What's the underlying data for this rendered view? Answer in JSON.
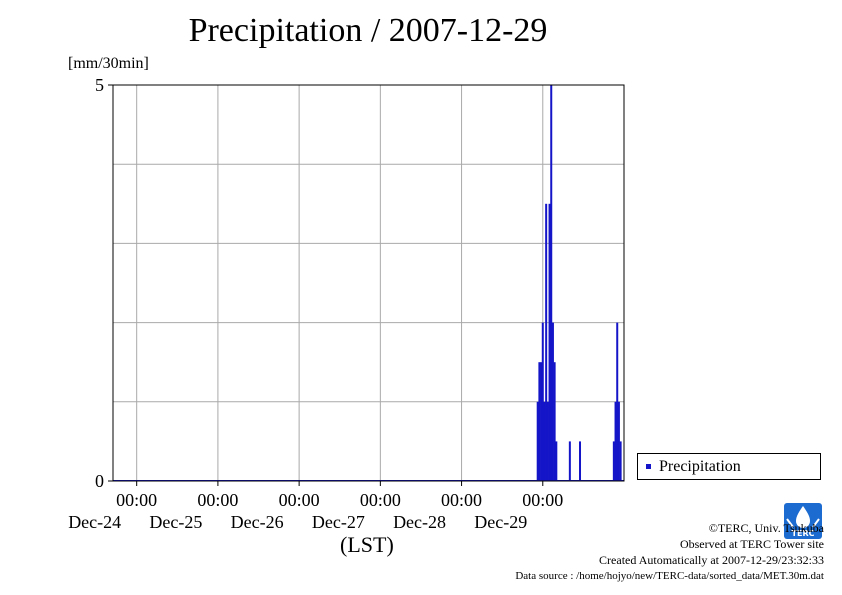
{
  "title": "Precipitation / 2007-12-29",
  "y_unit": "[mm/30min]",
  "x_axis_label": "(LST)",
  "legend": {
    "label": "Precipitation"
  },
  "colors": {
    "series": "#1414c8",
    "grid": "#a9a9a9",
    "logo": "#1c6bd0"
  },
  "credits": {
    "copyright": "©TERC, Univ. Tsukuba",
    "observed": "Observed at TERC Tower site",
    "created": "Created Automatically at 2007-12-29/23:32:33",
    "source": "Data source : /home/hojyo/new/TERC-data/sorted_data/MET.30m.dat"
  },
  "logo_text": "TERC",
  "chart_data": {
    "type": "bar",
    "title": "Precipitation / 2007-12-29",
    "ylabel": "[mm/30min]",
    "xlabel": "(LST)",
    "ylim": [
      0,
      5
    ],
    "y_ticks": [
      0,
      5
    ],
    "y_grid": [
      1,
      2,
      3,
      4
    ],
    "xlim": [
      "2007-12-23 17:00",
      "2007-12-30 00:00"
    ],
    "x_ticks": [
      {
        "time": "2007-12-24 00:00",
        "label": "00:00",
        "day": "Dec-24"
      },
      {
        "time": "2007-12-25 00:00",
        "label": "00:00",
        "day": "Dec-25"
      },
      {
        "time": "2007-12-26 00:00",
        "label": "00:00",
        "day": "Dec-26"
      },
      {
        "time": "2007-12-27 00:00",
        "label": "00:00",
        "day": "Dec-27"
      },
      {
        "time": "2007-12-28 00:00",
        "label": "00:00",
        "day": "Dec-28"
      },
      {
        "time": "2007-12-29 00:00",
        "label": "00:00",
        "day": "Dec-29"
      }
    ],
    "grid": true,
    "legend_position": "right",
    "series": [
      {
        "name": "Precipitation",
        "points": [
          {
            "t": "2007-12-28 22:30",
            "v": 1.0
          },
          {
            "t": "2007-12-28 23:00",
            "v": 1.5
          },
          {
            "t": "2007-12-28 23:30",
            "v": 1.5
          },
          {
            "t": "2007-12-29 00:00",
            "v": 2.0
          },
          {
            "t": "2007-12-29 00:30",
            "v": 1.0
          },
          {
            "t": "2007-12-29 01:00",
            "v": 3.5
          },
          {
            "t": "2007-12-29 01:30",
            "v": 1.0
          },
          {
            "t": "2007-12-29 02:00",
            "v": 3.5
          },
          {
            "t": "2007-12-29 02:30",
            "v": 5.0
          },
          {
            "t": "2007-12-29 03:00",
            "v": 2.0
          },
          {
            "t": "2007-12-29 03:30",
            "v": 1.5
          },
          {
            "t": "2007-12-29 04:00",
            "v": 0.5
          },
          {
            "t": "2007-12-29 08:00",
            "v": 0.5
          },
          {
            "t": "2007-12-29 11:00",
            "v": 0.5
          },
          {
            "t": "2007-12-29 21:00",
            "v": 0.5
          },
          {
            "t": "2007-12-29 21:30",
            "v": 1.0
          },
          {
            "t": "2007-12-29 22:00",
            "v": 2.0
          },
          {
            "t": "2007-12-29 22:30",
            "v": 1.0
          },
          {
            "t": "2007-12-29 23:00",
            "v": 0.5
          }
        ]
      }
    ]
  }
}
